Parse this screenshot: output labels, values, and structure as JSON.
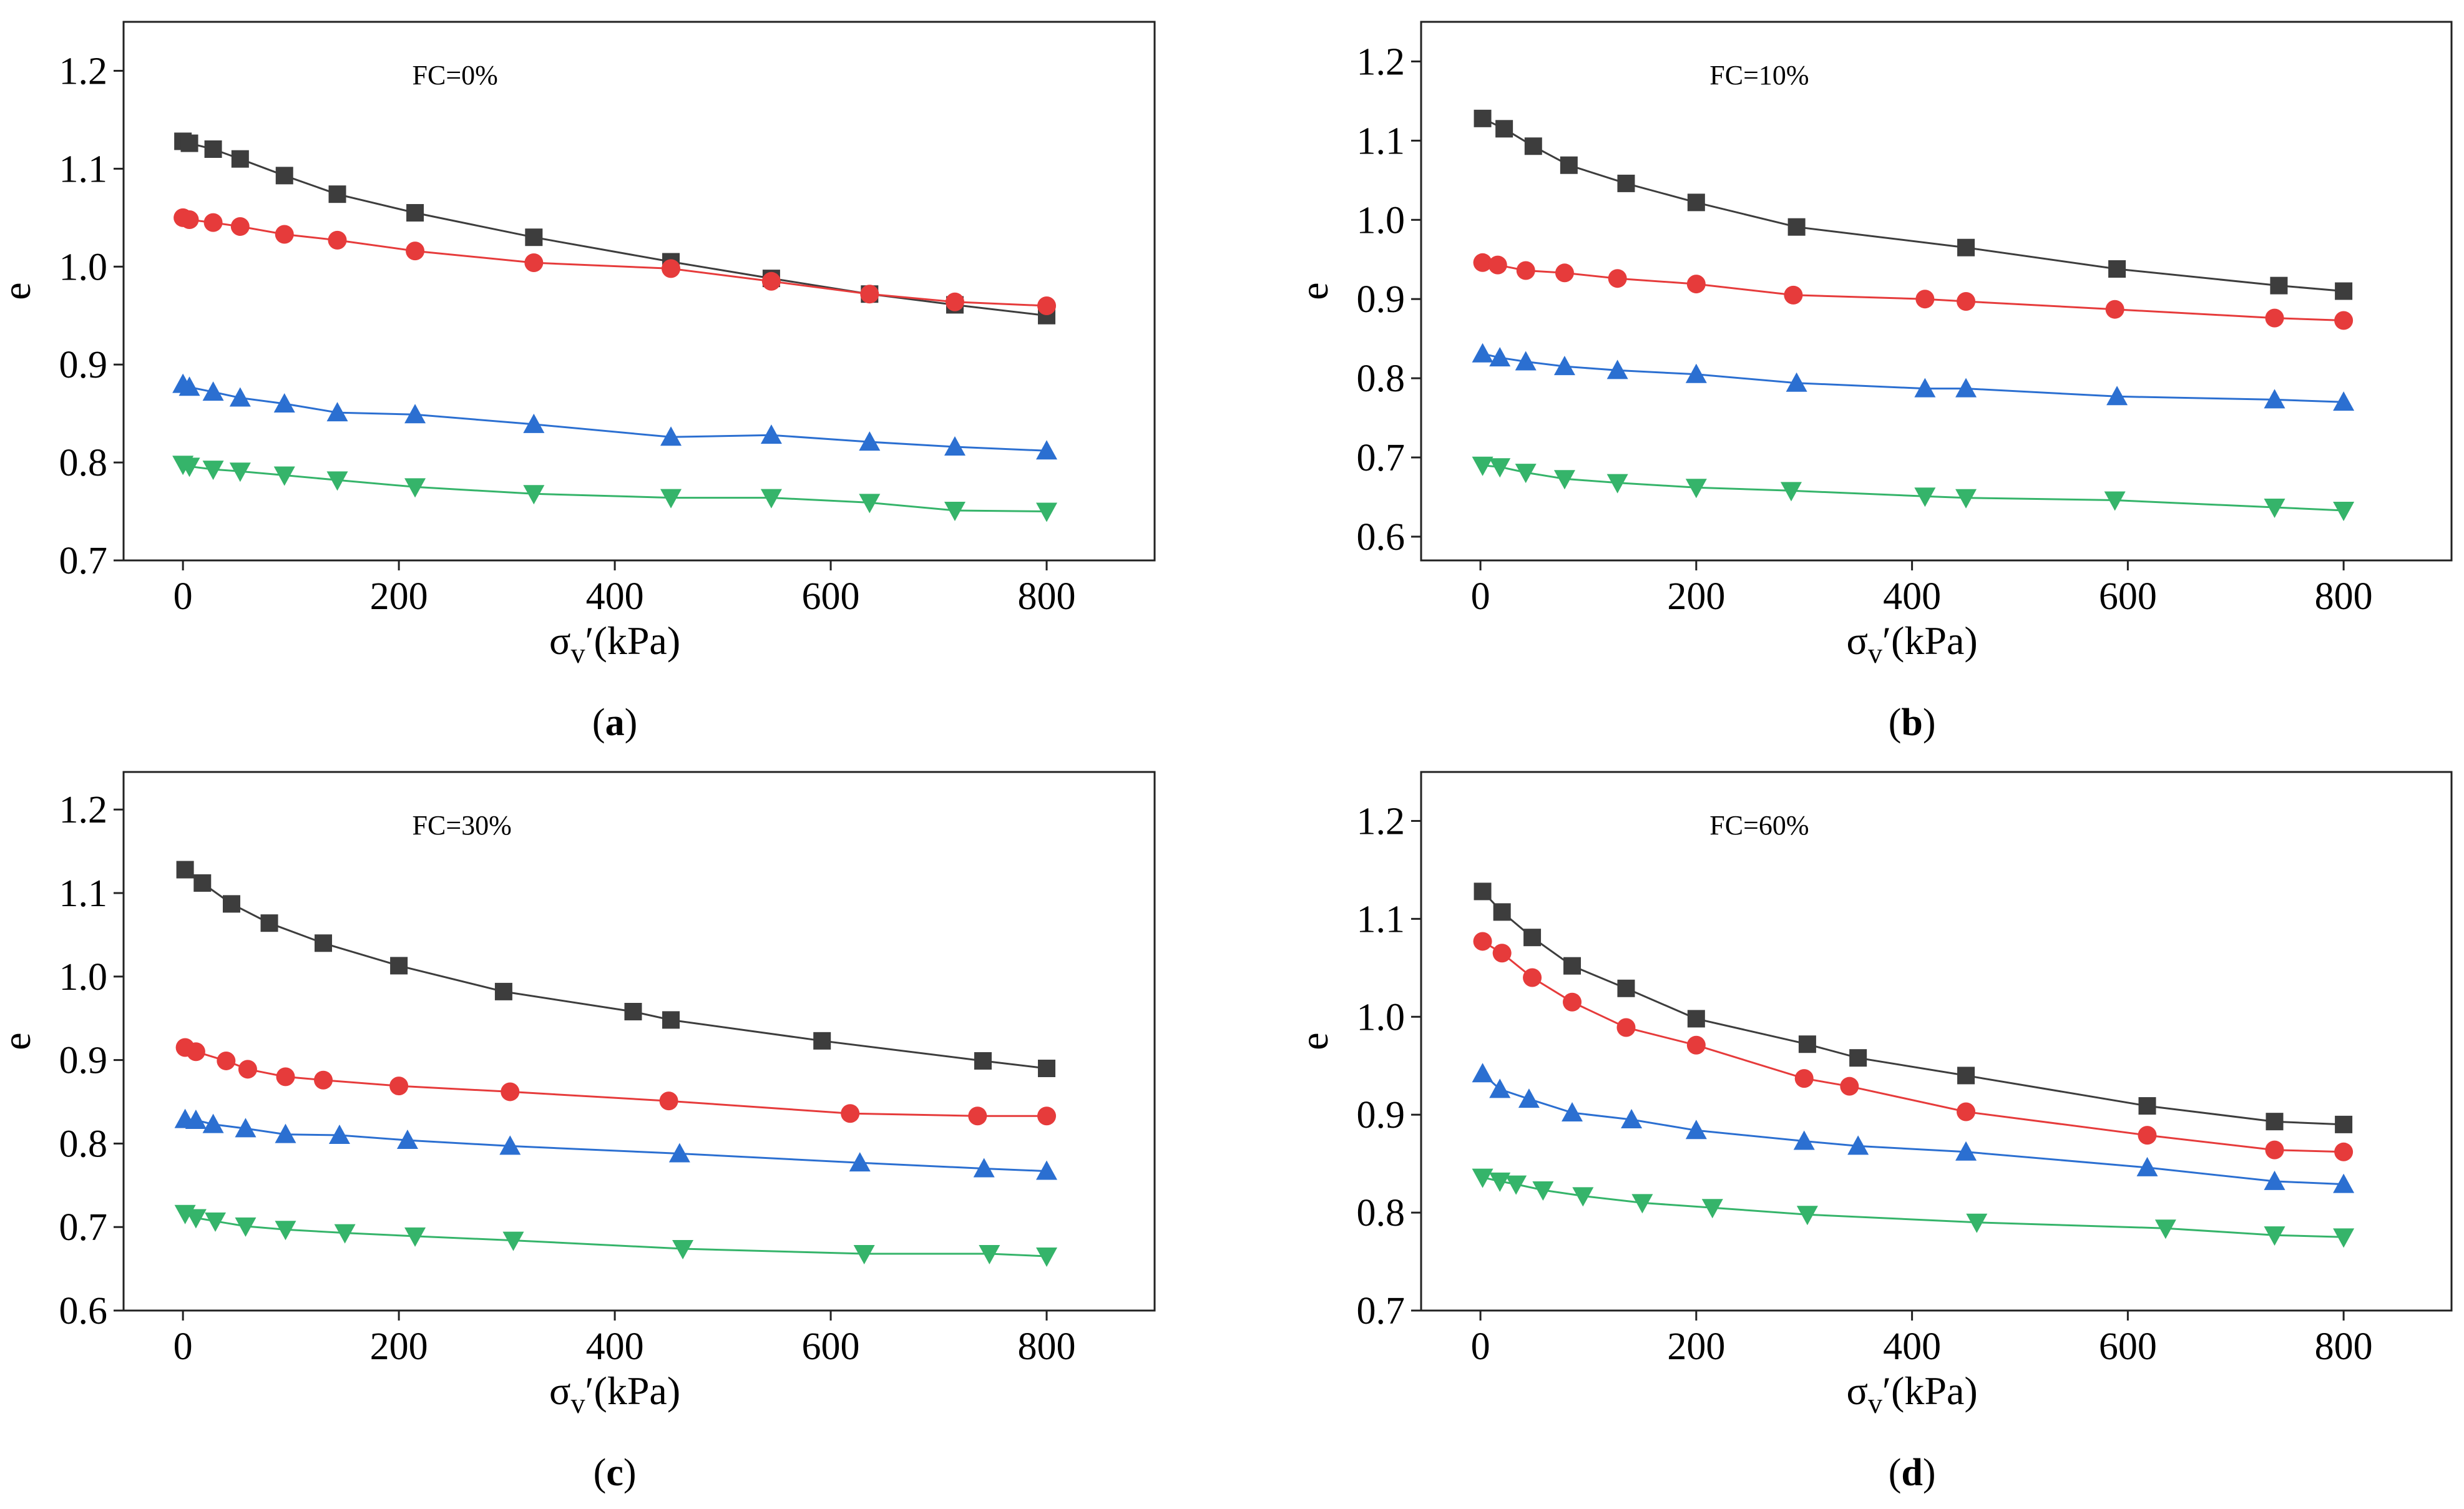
{
  "figure": {
    "colors": {
      "series1": "#3d3d3d",
      "series2": "#e63b3b",
      "series3": "#2b6fd1",
      "series4": "#35b46a",
      "axis": "#222222"
    },
    "icons": {
      "series1": "square-marker",
      "series2": "circle-marker",
      "series3": "triangle-up-marker",
      "series4": "triangle-down-marker"
    }
  },
  "chart_data": [
    {
      "type": "line",
      "panel_label": "a",
      "annotation": "FC=0%",
      "xlabel_main": "σ",
      "xlabel_sub": "v",
      "xlabel_rest": "′(kPa)",
      "ylabel": "e",
      "xlim": [
        -55,
        900
      ],
      "ylim": [
        0.7,
        1.25
      ],
      "xticks": [
        0,
        200,
        400,
        600,
        800
      ],
      "xtick_labels": [
        "0",
        "200",
        "400",
        "600",
        "800"
      ],
      "yticks": [
        0.7,
        0.8,
        0.9,
        1.0,
        1.1,
        1.2
      ],
      "ytick_labels": [
        "0.7",
        "0.8",
        "0.9",
        "1.0",
        "1.1",
        "1.2"
      ],
      "series": [
        {
          "marker": "square",
          "color": "#3d3d3d",
          "points": [
            [
              0,
              1.128
            ],
            [
              6,
              1.126
            ],
            [
              28,
              1.12
            ],
            [
              53,
              1.11
            ],
            [
              94,
              1.093
            ],
            [
              143,
              1.074
            ],
            [
              215,
              1.055
            ],
            [
              325,
              1.03
            ],
            [
              452,
              1.005
            ],
            [
              545,
              0.988
            ],
            [
              636,
              0.972
            ],
            [
              715,
              0.961
            ],
            [
              800,
              0.95
            ]
          ]
        },
        {
          "marker": "circle",
          "color": "#e63b3b",
          "points": [
            [
              0,
              1.05
            ],
            [
              6,
              1.048
            ],
            [
              28,
              1.045
            ],
            [
              53,
              1.041
            ],
            [
              94,
              1.033
            ],
            [
              143,
              1.027
            ],
            [
              215,
              1.016
            ],
            [
              325,
              1.004
            ],
            [
              452,
              0.998
            ],
            [
              545,
              0.985
            ],
            [
              636,
              0.972
            ],
            [
              715,
              0.964
            ],
            [
              800,
              0.96
            ]
          ]
        },
        {
          "marker": "triangle-up",
          "color": "#2b6fd1",
          "points": [
            [
              0,
              0.88
            ],
            [
              6,
              0.877
            ],
            [
              28,
              0.872
            ],
            [
              53,
              0.866
            ],
            [
              94,
              0.86
            ],
            [
              143,
              0.851
            ],
            [
              215,
              0.849
            ],
            [
              325,
              0.839
            ],
            [
              452,
              0.826
            ],
            [
              545,
              0.828
            ],
            [
              636,
              0.821
            ],
            [
              715,
              0.816
            ],
            [
              800,
              0.812
            ]
          ]
        },
        {
          "marker": "triangle-down",
          "color": "#35b46a",
          "points": [
            [
              0,
              0.798
            ],
            [
              6,
              0.796
            ],
            [
              28,
              0.793
            ],
            [
              53,
              0.791
            ],
            [
              94,
              0.787
            ],
            [
              143,
              0.782
            ],
            [
              215,
              0.775
            ],
            [
              325,
              0.768
            ],
            [
              452,
              0.764
            ],
            [
              545,
              0.764
            ],
            [
              636,
              0.759
            ],
            [
              715,
              0.751
            ],
            [
              800,
              0.75
            ]
          ]
        }
      ]
    },
    {
      "type": "line",
      "panel_label": "b",
      "annotation": "FC=10%",
      "xlabel_main": "σ",
      "xlabel_sub": "v",
      "xlabel_rest": "′(kPa)",
      "ylabel": "e",
      "xlim": [
        -55,
        900
      ],
      "ylim": [
        0.57,
        1.25
      ],
      "xticks": [
        0,
        200,
        400,
        600,
        800
      ],
      "xtick_labels": [
        "0",
        "200",
        "400",
        "600",
        "800"
      ],
      "yticks": [
        0.6,
        0.7,
        0.8,
        0.9,
        1.0,
        1.1,
        1.2
      ],
      "ytick_labels": [
        "0.6",
        "0.7",
        "0.8",
        "0.9",
        "1.0",
        "1.1",
        "1.2"
      ],
      "series": [
        {
          "marker": "square",
          "color": "#3d3d3d",
          "points": [
            [
              2,
              1.128
            ],
            [
              22,
              1.115
            ],
            [
              49,
              1.093
            ],
            [
              82,
              1.069
            ],
            [
              135,
              1.046
            ],
            [
              200,
              1.022
            ],
            [
              293,
              0.991
            ],
            [
              450,
              0.965
            ],
            [
              590,
              0.938
            ],
            [
              740,
              0.917
            ],
            [
              800,
              0.91
            ]
          ]
        },
        {
          "marker": "circle",
          "color": "#e63b3b",
          "points": [
            [
              2,
              0.946
            ],
            [
              16,
              0.943
            ],
            [
              42,
              0.936
            ],
            [
              78,
              0.933
            ],
            [
              127,
              0.926
            ],
            [
              200,
              0.919
            ],
            [
              290,
              0.905
            ],
            [
              412,
              0.9
            ],
            [
              450,
              0.897
            ],
            [
              588,
              0.887
            ],
            [
              736,
              0.876
            ],
            [
              800,
              0.873
            ]
          ]
        },
        {
          "marker": "triangle-up",
          "color": "#2b6fd1",
          "points": [
            [
              2,
              0.831
            ],
            [
              18,
              0.826
            ],
            [
              42,
              0.821
            ],
            [
              78,
              0.815
            ],
            [
              127,
              0.81
            ],
            [
              200,
              0.805
            ],
            [
              293,
              0.794
            ],
            [
              412,
              0.787
            ],
            [
              450,
              0.787
            ],
            [
              590,
              0.777
            ],
            [
              736,
              0.773
            ],
            [
              800,
              0.77
            ]
          ]
        },
        {
          "marker": "triangle-down",
          "color": "#35b46a",
          "points": [
            [
              2,
              0.69
            ],
            [
              18,
              0.688
            ],
            [
              42,
              0.681
            ],
            [
              78,
              0.673
            ],
            [
              127,
              0.668
            ],
            [
              200,
              0.662
            ],
            [
              288,
              0.658
            ],
            [
              412,
              0.651
            ],
            [
              450,
              0.649
            ],
            [
              588,
              0.646
            ],
            [
              736,
              0.637
            ],
            [
              800,
              0.633
            ]
          ]
        }
      ]
    },
    {
      "type": "line",
      "panel_label": "c",
      "annotation": "FC=30%",
      "xlabel_main": "σ",
      "xlabel_sub": "v",
      "xlabel_rest": "′(kPa)",
      "ylabel": "e",
      "xlim": [
        -55,
        900
      ],
      "ylim": [
        0.6,
        1.245
      ],
      "xticks": [
        0,
        200,
        400,
        600,
        800
      ],
      "xtick_labels": [
        "0",
        "200",
        "400",
        "600",
        "800"
      ],
      "yticks": [
        0.6,
        0.7,
        0.8,
        0.9,
        1.0,
        1.1,
        1.2
      ],
      "ytick_labels": [
        "0.6",
        "0.7",
        "0.8",
        "0.9",
        "1.0",
        "1.1",
        "1.2"
      ],
      "series": [
        {
          "marker": "square",
          "color": "#3d3d3d",
          "points": [
            [
              2,
              1.128
            ],
            [
              18,
              1.112
            ],
            [
              45,
              1.087
            ],
            [
              80,
              1.064
            ],
            [
              130,
              1.04
            ],
            [
              200,
              1.013
            ],
            [
              297,
              0.982
            ],
            [
              417,
              0.958
            ],
            [
              452,
              0.948
            ],
            [
              592,
              0.923
            ],
            [
              741,
              0.899
            ],
            [
              800,
              0.89
            ]
          ]
        },
        {
          "marker": "circle",
          "color": "#e63b3b",
          "points": [
            [
              2,
              0.915
            ],
            [
              12,
              0.91
            ],
            [
              40,
              0.899
            ],
            [
              60,
              0.889
            ],
            [
              95,
              0.88
            ],
            [
              130,
              0.876
            ],
            [
              200,
              0.869
            ],
            [
              303,
              0.862
            ],
            [
              450,
              0.851
            ],
            [
              618,
              0.836
            ],
            [
              736,
              0.833
            ],
            [
              800,
              0.833
            ]
          ]
        },
        {
          "marker": "triangle-up",
          "color": "#2b6fd1",
          "points": [
            [
              2,
              0.829
            ],
            [
              12,
              0.828
            ],
            [
              28,
              0.823
            ],
            [
              58,
              0.818
            ],
            [
              95,
              0.811
            ],
            [
              145,
              0.81
            ],
            [
              208,
              0.804
            ],
            [
              303,
              0.797
            ],
            [
              460,
              0.788
            ],
            [
              627,
              0.777
            ],
            [
              742,
              0.77
            ],
            [
              800,
              0.767
            ]
          ]
        },
        {
          "marker": "triangle-down",
          "color": "#35b46a",
          "points": [
            [
              2,
              0.716
            ],
            [
              12,
              0.711
            ],
            [
              30,
              0.707
            ],
            [
              58,
              0.701
            ],
            [
              95,
              0.697
            ],
            [
              150,
              0.693
            ],
            [
              215,
              0.689
            ],
            [
              306,
              0.684
            ],
            [
              463,
              0.674
            ],
            [
              631,
              0.668
            ],
            [
              747,
              0.668
            ],
            [
              800,
              0.665
            ]
          ]
        }
      ]
    },
    {
      "type": "line",
      "panel_label": "d",
      "annotation": "FC=60%",
      "xlabel_main": "σ",
      "xlabel_sub": "v",
      "xlabel_rest": "′(kPa)",
      "ylabel": "e",
      "xlim": [
        -55,
        900
      ],
      "ylim": [
        0.7,
        1.25
      ],
      "xticks": [
        0,
        200,
        400,
        600,
        800
      ],
      "xtick_labels": [
        "0",
        "200",
        "400",
        "600",
        "800"
      ],
      "yticks": [
        0.7,
        0.8,
        0.9,
        1.0,
        1.1,
        1.2
      ],
      "ytick_labels": [
        "0.7",
        "0.8",
        "0.9",
        "1.0",
        "1.1",
        "1.2"
      ],
      "series": [
        {
          "marker": "square",
          "color": "#3d3d3d",
          "points": [
            [
              2,
              1.128
            ],
            [
              20,
              1.107
            ],
            [
              48,
              1.081
            ],
            [
              85,
              1.052
            ],
            [
              135,
              1.029
            ],
            [
              200,
              0.998
            ],
            [
              303,
              0.972
            ],
            [
              350,
              0.958
            ],
            [
              450,
              0.94
            ],
            [
              618,
              0.909
            ],
            [
              736,
              0.893
            ],
            [
              800,
              0.89
            ]
          ]
        },
        {
          "marker": "circle",
          "color": "#e63b3b",
          "points": [
            [
              2,
              1.077
            ],
            [
              20,
              1.065
            ],
            [
              48,
              1.04
            ],
            [
              85,
              1.015
            ],
            [
              135,
              0.989
            ],
            [
              200,
              0.971
            ],
            [
              300,
              0.937
            ],
            [
              342,
              0.929
            ],
            [
              450,
              0.903
            ],
            [
              618,
              0.879
            ],
            [
              736,
              0.864
            ],
            [
              800,
              0.862
            ]
          ]
        },
        {
          "marker": "triangle-up",
          "color": "#2b6fd1",
          "points": [
            [
              2,
              0.942
            ],
            [
              18,
              0.926
            ],
            [
              45,
              0.916
            ],
            [
              85,
              0.902
            ],
            [
              140,
              0.895
            ],
            [
              200,
              0.884
            ],
            [
              300,
              0.873
            ],
            [
              350,
              0.868
            ],
            [
              450,
              0.862
            ],
            [
              618,
              0.846
            ],
            [
              736,
              0.832
            ],
            [
              800,
              0.829
            ]
          ]
        },
        {
          "marker": "triangle-down",
          "color": "#35b46a",
          "points": [
            [
              2,
              0.836
            ],
            [
              18,
              0.832
            ],
            [
              33,
              0.829
            ],
            [
              58,
              0.823
            ],
            [
              95,
              0.817
            ],
            [
              150,
              0.81
            ],
            [
              215,
              0.805
            ],
            [
              303,
              0.798
            ],
            [
              460,
              0.79
            ],
            [
              635,
              0.784
            ],
            [
              736,
              0.777
            ],
            [
              800,
              0.775
            ]
          ]
        }
      ]
    }
  ]
}
